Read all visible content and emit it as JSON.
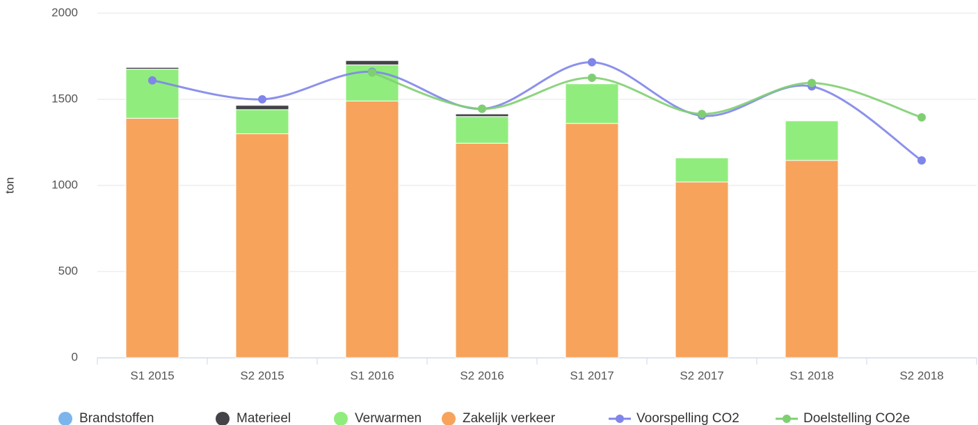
{
  "chart_data": {
    "type": "bar",
    "y_axis_label": "ton",
    "categories": [
      "S1 2015",
      "S2 2015",
      "S1 2016",
      "S2 2016",
      "S1 2017",
      "S2 2017",
      "S1 2018",
      "S2 2018"
    ],
    "series": [
      {
        "name": "Brandstoffen",
        "type": "bar",
        "color": "#7cb5ec",
        "values": [
          0,
          0,
          0,
          0,
          0,
          0,
          0,
          null
        ]
      },
      {
        "name": "Materieel",
        "type": "bar",
        "color": "#434348",
        "values": [
          10,
          25,
          25,
          15,
          0,
          0,
          0,
          null
        ]
      },
      {
        "name": "Verwarmen",
        "type": "bar",
        "color": "#90ed7d",
        "values": [
          285,
          140,
          210,
          155,
          230,
          140,
          230,
          null
        ]
      },
      {
        "name": "Zakelijk verkeer",
        "type": "bar",
        "color": "#f7a35c",
        "values": [
          1390,
          1300,
          1490,
          1245,
          1360,
          1020,
          1145,
          null
        ]
      },
      {
        "name": "Voorspelling CO2",
        "type": "line",
        "color": "#8085e9",
        "values": [
          1610,
          1500,
          1660,
          1445,
          1715,
          1405,
          1575,
          1145
        ]
      },
      {
        "name": "Doelstelling CO2e",
        "type": "line",
        "color": "#7fcf72",
        "values": [
          null,
          null,
          1655,
          1445,
          1625,
          1415,
          1595,
          1395
        ]
      }
    ],
    "ylim": [
      0,
      2000
    ],
    "yticks": [
      0,
      500,
      1000,
      1500,
      2000
    ],
    "grid": true,
    "stacked": true,
    "legend": "bottom"
  }
}
